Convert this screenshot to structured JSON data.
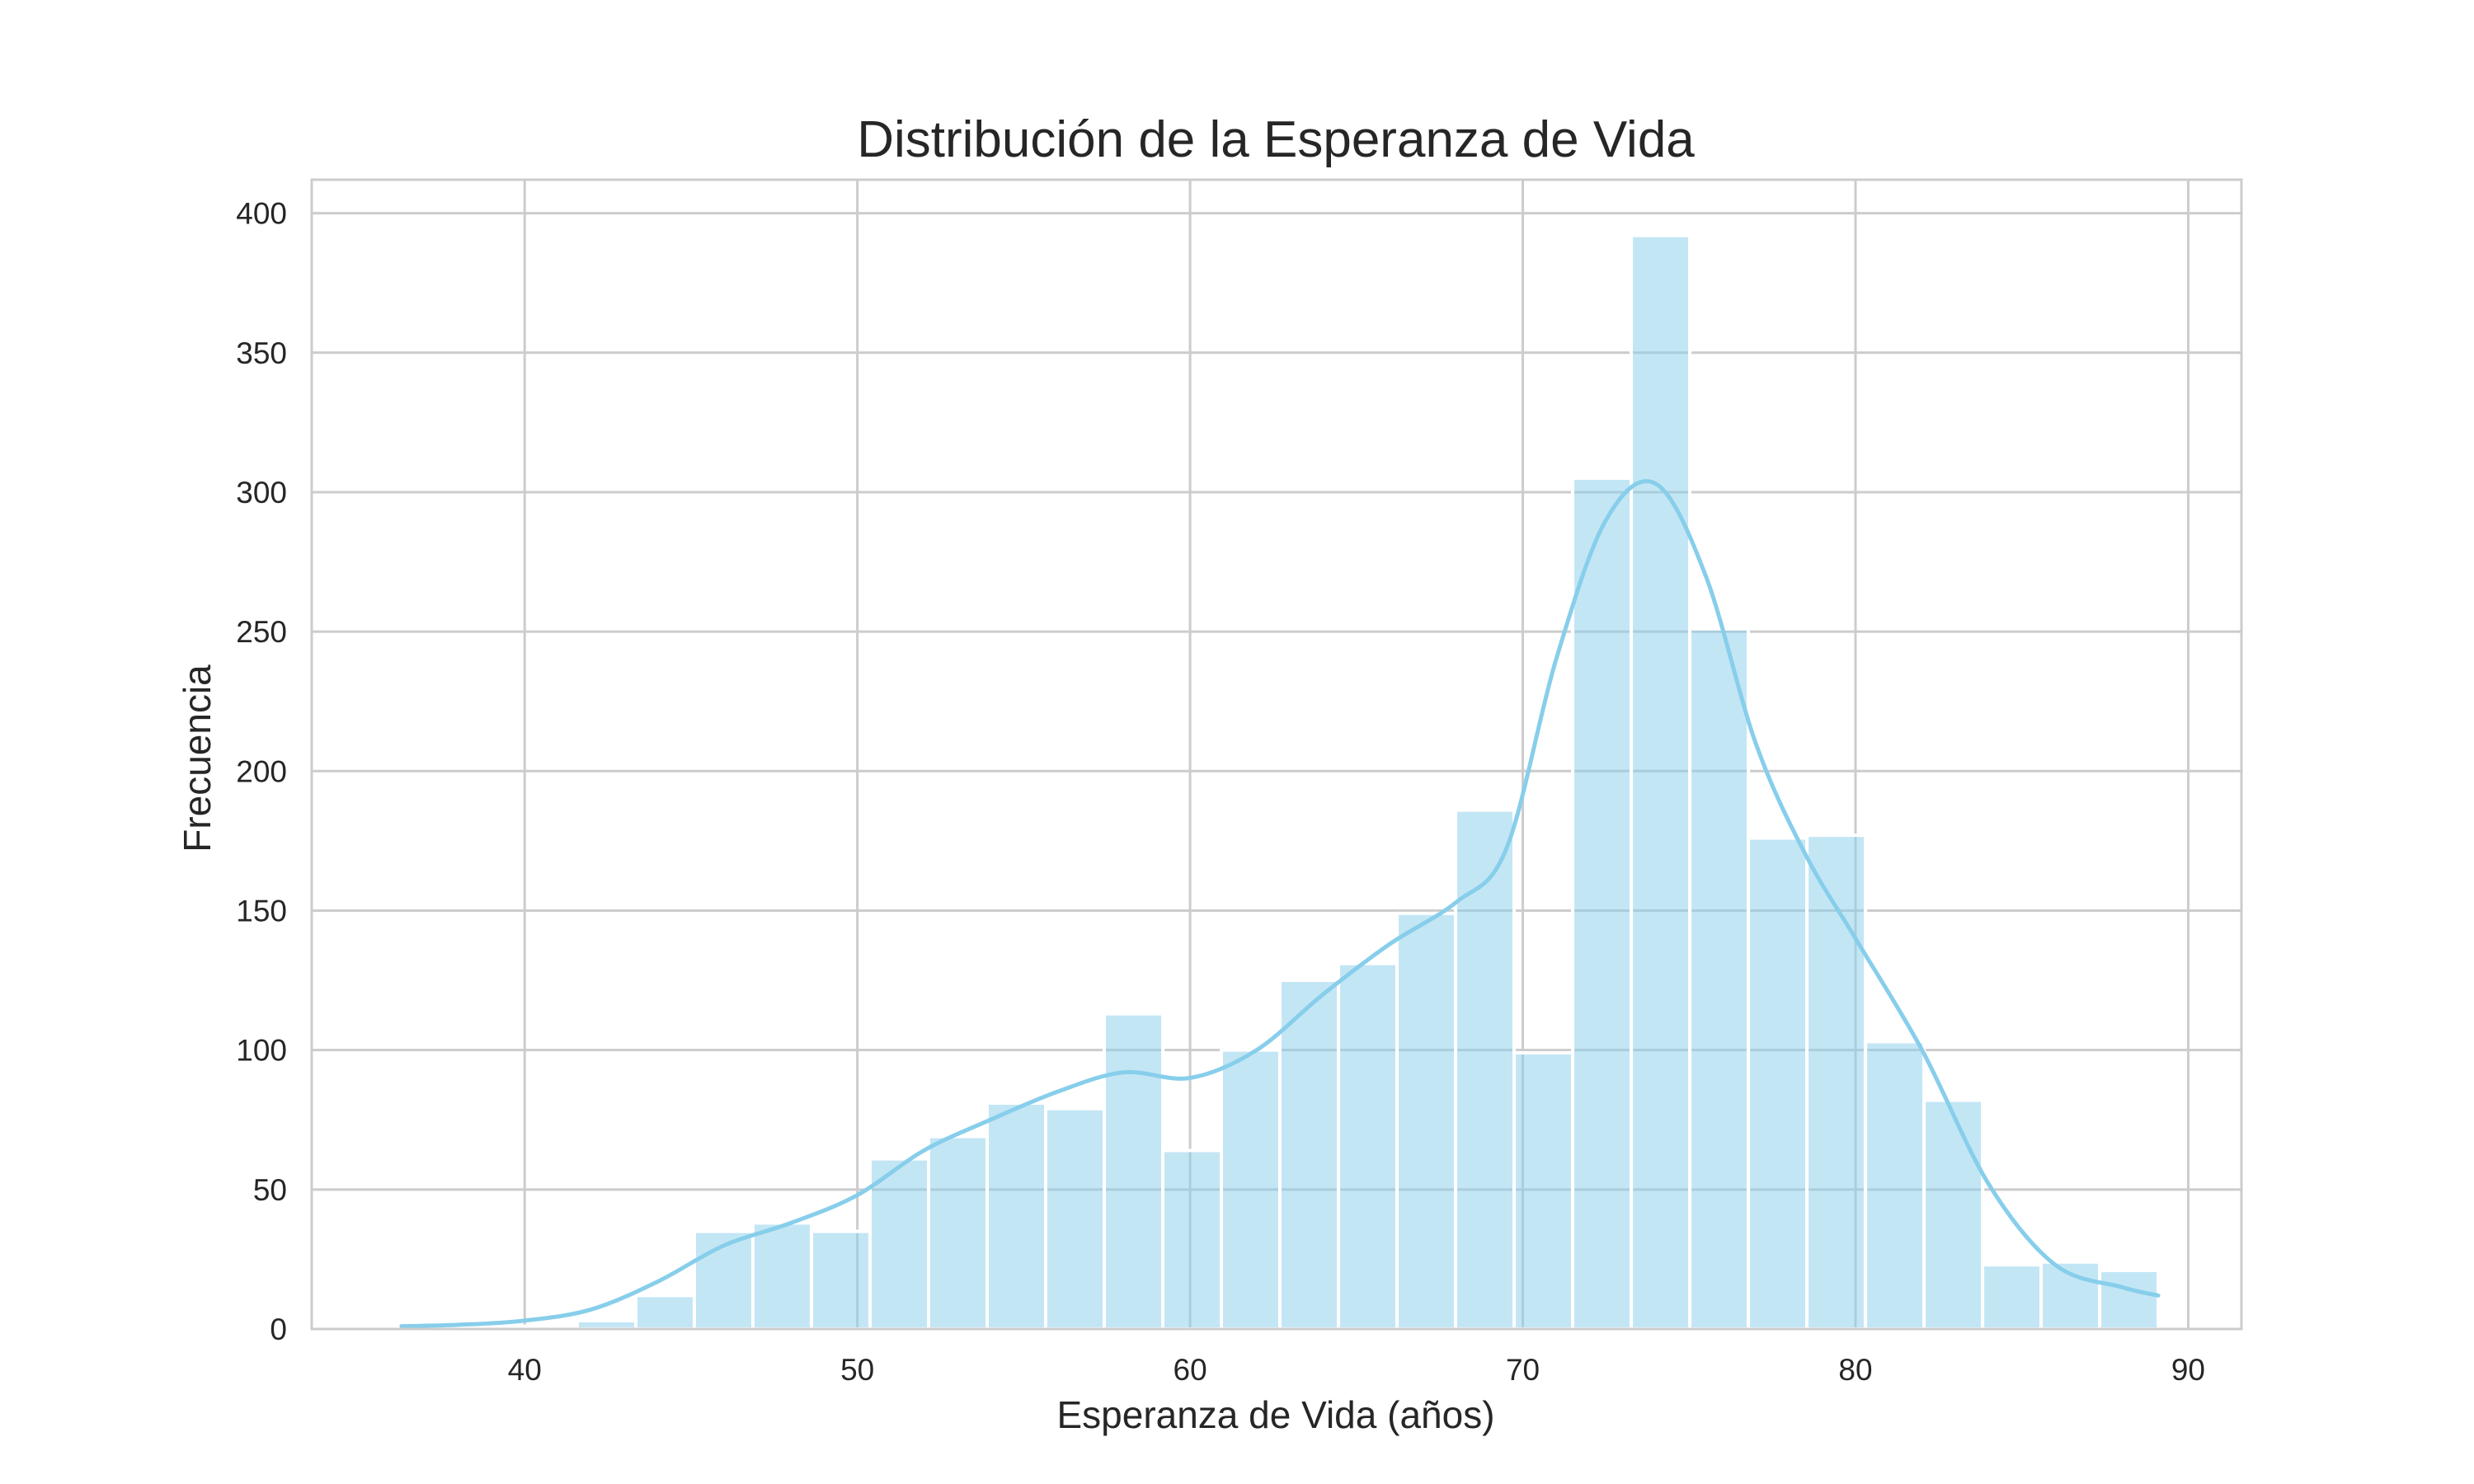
{
  "chart_data": {
    "type": "bar",
    "subtype": "histogram-with-kde",
    "title": "Distribución de la Esperanza de Vida",
    "xlabel": "Esperanza de Vida (años)",
    "ylabel": "Frecuencia",
    "xlim": [
      33.6,
      91.6
    ],
    "ylim": [
      0,
      412
    ],
    "xticks": [
      40,
      50,
      60,
      70,
      80,
      90
    ],
    "yticks": [
      0,
      50,
      100,
      150,
      200,
      250,
      300,
      350,
      400
    ],
    "grid": true,
    "legend": "none",
    "colors": {
      "bar": "#87ceeb",
      "line": "#87ceeb",
      "grid": "#cccccc",
      "text": "#262626"
    },
    "bins": [
      {
        "x0": 36.3,
        "x1": 38.06,
        "count": 1
      },
      {
        "x0": 38.06,
        "x1": 39.82,
        "count": 0
      },
      {
        "x0": 39.82,
        "x1": 41.58,
        "count": 1
      },
      {
        "x0": 41.58,
        "x1": 43.34,
        "count": 3
      },
      {
        "x0": 43.34,
        "x1": 45.1,
        "count": 12
      },
      {
        "x0": 45.1,
        "x1": 46.86,
        "count": 35
      },
      {
        "x0": 46.86,
        "x1": 48.62,
        "count": 38
      },
      {
        "x0": 48.62,
        "x1": 50.38,
        "count": 35
      },
      {
        "x0": 50.38,
        "x1": 52.14,
        "count": 61
      },
      {
        "x0": 52.14,
        "x1": 53.9,
        "count": 69
      },
      {
        "x0": 53.9,
        "x1": 55.66,
        "count": 81
      },
      {
        "x0": 55.66,
        "x1": 57.42,
        "count": 79
      },
      {
        "x0": 57.42,
        "x1": 59.18,
        "count": 113
      },
      {
        "x0": 59.18,
        "x1": 60.94,
        "count": 64
      },
      {
        "x0": 60.94,
        "x1": 62.7,
        "count": 100
      },
      {
        "x0": 62.7,
        "x1": 64.46,
        "count": 125
      },
      {
        "x0": 64.46,
        "x1": 66.22,
        "count": 131
      },
      {
        "x0": 66.22,
        "x1": 67.98,
        "count": 149
      },
      {
        "x0": 67.98,
        "x1": 69.74,
        "count": 186
      },
      {
        "x0": 69.74,
        "x1": 71.5,
        "count": 99
      },
      {
        "x0": 71.5,
        "x1": 73.26,
        "count": 305
      },
      {
        "x0": 73.26,
        "x1": 75.02,
        "count": 392
      },
      {
        "x0": 75.02,
        "x1": 76.78,
        "count": 251
      },
      {
        "x0": 76.78,
        "x1": 78.54,
        "count": 176
      },
      {
        "x0": 78.54,
        "x1": 80.3,
        "count": 177
      },
      {
        "x0": 80.3,
        "x1": 82.06,
        "count": 103
      },
      {
        "x0": 82.06,
        "x1": 83.82,
        "count": 82
      },
      {
        "x0": 83.82,
        "x1": 85.58,
        "count": 23
      },
      {
        "x0": 85.58,
        "x1": 87.34,
        "count": 24
      },
      {
        "x0": 87.34,
        "x1": 89.1,
        "count": 21
      }
    ],
    "kde": {
      "x": [
        36.3,
        38,
        40,
        42,
        44,
        46,
        48,
        50,
        52,
        54,
        56,
        58,
        60,
        62,
        64,
        66,
        68,
        69.5,
        71,
        72.5,
        74,
        75.5,
        77,
        78.5,
        80,
        82,
        84,
        86,
        88,
        89.1
      ],
      "y": [
        1,
        1.5,
        3,
        7,
        17,
        30,
        38,
        48,
        64,
        75,
        85,
        92,
        90,
        100,
        120,
        138,
        153,
        172,
        240,
        290,
        303,
        270,
        210,
        170,
        140,
        100,
        52,
        23,
        15,
        12
      ]
    }
  }
}
